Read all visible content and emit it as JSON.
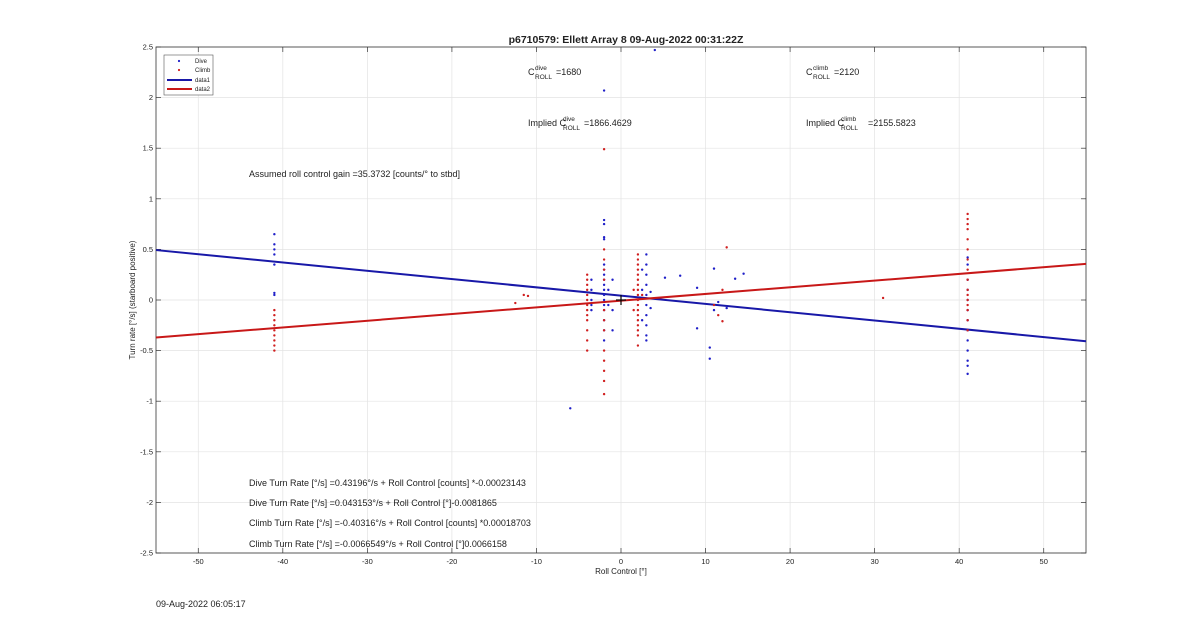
{
  "chart_data": {
    "type": "scatter",
    "title": "p6710579: Ellett Array 8 09-Aug-2022 00:31:22Z",
    "xlabel": "Roll Control [°]",
    "ylabel": "Turn rate [°/s] (starboard positive)",
    "xlim": [
      -55,
      55
    ],
    "ylim": [
      -2.5,
      2.5
    ],
    "xticks": [
      -50,
      -40,
      -30,
      -20,
      -10,
      0,
      10,
      20,
      30,
      40,
      50
    ],
    "yticks": [
      -2.5,
      -2,
      -1.5,
      -1,
      -0.5,
      0,
      0.5,
      1,
      1.5,
      2,
      2.5
    ],
    "xtick_labels": [
      "-50",
      "-40",
      "-30",
      "-20",
      "-10",
      "0",
      "10",
      "20",
      "30",
      "40",
      "50"
    ],
    "ytick_labels": [
      "-2.5",
      "-2",
      "-1.5",
      "-1",
      "-0.5",
      "0",
      "0.5",
      "1",
      "1.5",
      "2",
      "2.5"
    ],
    "grid": true,
    "legend_position": "top-left",
    "legend": [
      "Dive",
      "Climb",
      "data1",
      "data2"
    ],
    "colors": {
      "dive": "#1f1fc8",
      "climb": "#d01f1f",
      "data1": "#1818a8",
      "data2": "#c81818"
    },
    "series": [
      {
        "name": "Dive",
        "marker": "point",
        "points": [
          [
            -41,
            0.65
          ],
          [
            -41,
            0.55
          ],
          [
            -41,
            0.5
          ],
          [
            -41,
            0.45
          ],
          [
            -41,
            0.35
          ],
          [
            -41,
            0.07
          ],
          [
            -41,
            0.05
          ],
          [
            -2,
            2.07
          ],
          [
            -2,
            0.79
          ],
          [
            -2,
            0.75
          ],
          [
            -2,
            0.62
          ],
          [
            -2,
            0.6
          ],
          [
            -2,
            0.35
          ],
          [
            -2,
            0.3
          ],
          [
            -2,
            0.25
          ],
          [
            -2,
            0.2
          ],
          [
            -2,
            0.15
          ],
          [
            -2,
            0.1
          ],
          [
            -2,
            0.05
          ],
          [
            -2,
            0.0
          ],
          [
            -2,
            -0.05
          ],
          [
            -2,
            -0.1
          ],
          [
            -2,
            -0.2
          ],
          [
            -2,
            -0.3
          ],
          [
            -2,
            -0.4
          ],
          [
            -3.5,
            0.2
          ],
          [
            -3.5,
            0.1
          ],
          [
            -3.5,
            0.0
          ],
          [
            -3.5,
            -0.05
          ],
          [
            -3.5,
            -0.1
          ],
          [
            -1.5,
            0.1
          ],
          [
            -1.5,
            -0.05
          ],
          [
            -1,
            0.2
          ],
          [
            -1,
            -0.1
          ],
          [
            -1,
            -0.3
          ],
          [
            3,
            0.45
          ],
          [
            3,
            0.35
          ],
          [
            3,
            0.25
          ],
          [
            3,
            0.15
          ],
          [
            3,
            0.05
          ],
          [
            3,
            -0.05
          ],
          [
            3,
            -0.15
          ],
          [
            3,
            -0.25
          ],
          [
            3,
            -0.35
          ],
          [
            3,
            -0.4
          ],
          [
            2.5,
            0.3
          ],
          [
            2.5,
            0.1
          ],
          [
            2.5,
            -0.2
          ],
          [
            3.5,
            0.08
          ],
          [
            3.5,
            -0.08
          ],
          [
            -6,
            -1.07
          ],
          [
            4,
            2.47
          ],
          [
            5.2,
            0.22
          ],
          [
            7,
            0.24
          ],
          [
            9,
            0.12
          ],
          [
            9,
            -0.28
          ],
          [
            10.5,
            -0.47
          ],
          [
            10.5,
            -0.58
          ],
          [
            11,
            0.31
          ],
          [
            11,
            -0.1
          ],
          [
            11.5,
            -0.02
          ],
          [
            12.5,
            -0.08
          ],
          [
            13.5,
            0.21
          ],
          [
            14.5,
            0.26
          ],
          [
            41,
            0.42
          ],
          [
            41,
            0.35
          ],
          [
            41,
            0.2
          ],
          [
            41,
            0.1
          ],
          [
            41,
            0.0
          ],
          [
            41,
            -0.1
          ],
          [
            41,
            -0.2
          ],
          [
            41,
            -0.3
          ],
          [
            41,
            -0.4
          ],
          [
            41,
            -0.5
          ],
          [
            41,
            -0.6
          ],
          [
            41,
            -0.65
          ],
          [
            41,
            -0.73
          ]
        ]
      },
      {
        "name": "Climb",
        "marker": "point",
        "points": [
          [
            -41,
            -0.1
          ],
          [
            -41,
            -0.15
          ],
          [
            -41,
            -0.2
          ],
          [
            -41,
            -0.25
          ],
          [
            -41,
            -0.3
          ],
          [
            -41,
            -0.35
          ],
          [
            -41,
            -0.4
          ],
          [
            -41,
            -0.45
          ],
          [
            -41,
            -0.5
          ],
          [
            -12.5,
            -0.03
          ],
          [
            -11.5,
            0.05
          ],
          [
            -11,
            0.04
          ],
          [
            -4,
            0.25
          ],
          [
            -4,
            0.2
          ],
          [
            -4,
            0.15
          ],
          [
            -4,
            0.1
          ],
          [
            -4,
            0.05
          ],
          [
            -4,
            0.0
          ],
          [
            -4,
            -0.05
          ],
          [
            -4,
            -0.1
          ],
          [
            -4,
            -0.15
          ],
          [
            -4,
            -0.2
          ],
          [
            -4,
            -0.3
          ],
          [
            -4,
            -0.4
          ],
          [
            -4,
            -0.5
          ],
          [
            -2,
            1.49
          ],
          [
            -2,
            0.5
          ],
          [
            -2,
            0.4
          ],
          [
            -2,
            0.3
          ],
          [
            -2,
            0.2
          ],
          [
            -2,
            -0.1
          ],
          [
            -2,
            -0.2
          ],
          [
            -2,
            -0.3
          ],
          [
            -2,
            -0.5
          ],
          [
            -2,
            -0.6
          ],
          [
            -2,
            -0.7
          ],
          [
            -2,
            -0.8
          ],
          [
            -2,
            -0.93
          ],
          [
            2,
            0.45
          ],
          [
            2,
            0.4
          ],
          [
            2,
            0.35
          ],
          [
            2,
            0.3
          ],
          [
            2,
            0.25
          ],
          [
            2,
            0.2
          ],
          [
            2,
            0.15
          ],
          [
            2,
            0.1
          ],
          [
            2,
            0.05
          ],
          [
            2,
            0.0
          ],
          [
            2,
            -0.05
          ],
          [
            2,
            -0.1
          ],
          [
            2,
            -0.15
          ],
          [
            2,
            -0.2
          ],
          [
            2,
            -0.25
          ],
          [
            2,
            -0.3
          ],
          [
            2,
            -0.35
          ],
          [
            2,
            -0.45
          ],
          [
            1.5,
            0.1
          ],
          [
            1.5,
            -0.1
          ],
          [
            2.5,
            0.05
          ],
          [
            11,
            -0.05
          ],
          [
            11.5,
            -0.15
          ],
          [
            12,
            0.1
          ],
          [
            12,
            -0.21
          ],
          [
            12.5,
            0.52
          ],
          [
            31,
            0.02
          ],
          [
            41,
            0.85
          ],
          [
            41,
            0.8
          ],
          [
            41,
            0.75
          ],
          [
            41,
            0.7
          ],
          [
            41,
            0.6
          ],
          [
            41,
            0.5
          ],
          [
            41,
            0.4
          ],
          [
            41,
            0.3
          ],
          [
            41,
            0.2
          ],
          [
            41,
            0.1
          ],
          [
            41,
            0.05
          ],
          [
            41,
            0.0
          ],
          [
            41,
            -0.05
          ],
          [
            41,
            -0.1
          ],
          [
            41,
            -0.2
          ],
          [
            41,
            -0.3
          ]
        ]
      },
      {
        "name": "data1",
        "marker": "line",
        "intercept": 0.043153,
        "slope": -0.0081865
      },
      {
        "name": "data2",
        "marker": "line",
        "intercept": -0.0066549,
        "slope": 0.0066158
      }
    ],
    "center_marker": [
      0,
      0
    ],
    "annotations": {
      "c_dive_base": "C",
      "c_dive_sup": "dive",
      "c_dive_sub": "ROLL",
      "c_dive_value": "=1680",
      "c_climb_base": "C",
      "c_climb_sup": "climb",
      "c_climb_sub": "ROLL",
      "c_climb_value": "=2120",
      "implied_prefix": "Implied C",
      "implied_dive_value": "=1866.4629",
      "implied_climb_value": "=2155.5823",
      "gain_text": "Assumed roll control gain =35.3732 [counts/° to stbd]",
      "fit_lines": [
        "Dive Turn Rate [°/s] =0.43196°/s + Roll Control [counts] *-0.00023143",
        "Dive Turn Rate [°/s] =0.043153°/s + Roll Control [°]-0.0081865",
        "Climb Turn Rate [°/s] =-0.40316°/s + Roll Control [counts] *0.00018703",
        "Climb Turn Rate [°/s] =-0.0066549°/s + Roll Control [°]0.0066158"
      ]
    }
  },
  "footer_timestamp": "09-Aug-2022 06:05:17"
}
